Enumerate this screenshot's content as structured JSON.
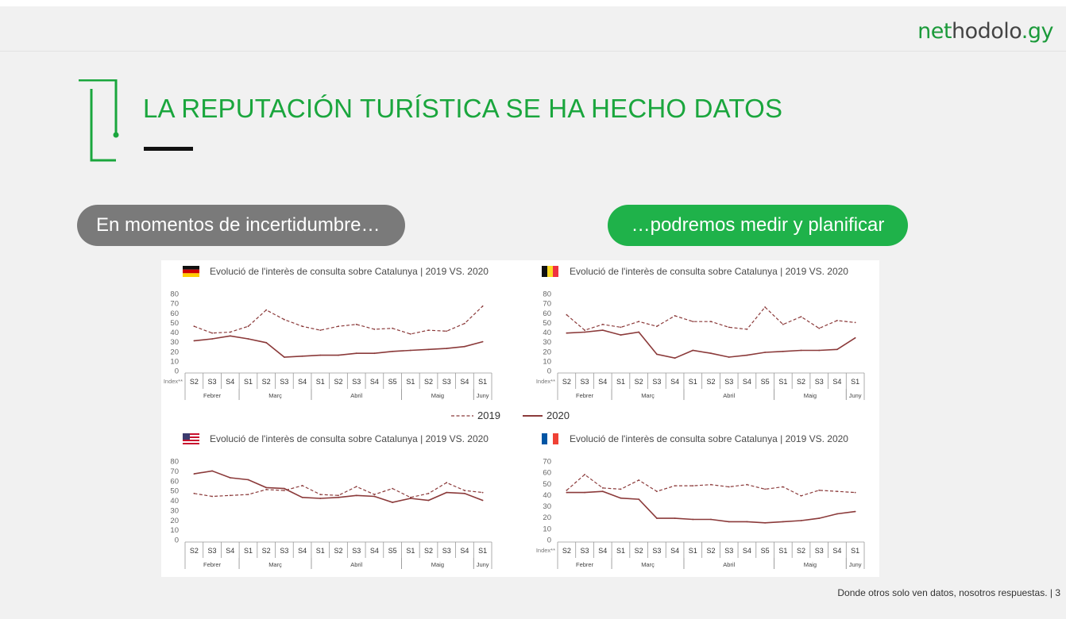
{
  "logo": {
    "part1": "net",
    "part2": "hodolo",
    "part3": ".gy"
  },
  "title": "LA REPUTACIÓN TURÍSTICA SE HA HECHO DATOS",
  "pills": {
    "left": "En momentos de incertidumbre…",
    "right": "…podremos medir y planificar"
  },
  "footer": "Donde otros solo ven datos, nosotros respuestas. | 3",
  "colors": {
    "green": "#1aa63d",
    "pill_gray": "#7a7a7a",
    "line_color": "#8b3a3a"
  },
  "legend": {
    "series_2019": "2019",
    "series_2020": "2020"
  },
  "chart_data": [
    {
      "type": "line",
      "flag": "germany-flag",
      "title": "Evolució de l'interès de consulta sobre Catalunya | 2019 VS. 2020",
      "ylabel": "Index**",
      "ylim": [
        0,
        80
      ],
      "yticks": [
        0,
        10,
        20,
        30,
        40,
        50,
        60,
        70,
        80
      ],
      "categories": [
        "S2",
        "S3",
        "S4",
        "S1",
        "S2",
        "S3",
        "S4",
        "S1",
        "S2",
        "S3",
        "S4",
        "S5",
        "S1",
        "S2",
        "S3",
        "S4",
        "S1"
      ],
      "months": [
        {
          "name": "Febrer",
          "span": [
            0,
            2
          ]
        },
        {
          "name": "Març",
          "span": [
            3,
            6
          ]
        },
        {
          "name": "Abril",
          "span": [
            7,
            11
          ]
        },
        {
          "name": "Maig",
          "span": [
            12,
            15
          ]
        },
        {
          "name": "Juny",
          "span": [
            16,
            16
          ]
        }
      ],
      "series": [
        {
          "name": "2019",
          "values": [
            46,
            39,
            40,
            46,
            63,
            53,
            46,
            42,
            46,
            48,
            43,
            44,
            38,
            42,
            41,
            49,
            67
          ]
        },
        {
          "name": "2020",
          "values": [
            31,
            33,
            36,
            33,
            29,
            14,
            15,
            16,
            16,
            18,
            18,
            20,
            21,
            22,
            23,
            25,
            30
          ]
        }
      ]
    },
    {
      "type": "line",
      "flag": "belgium-flag",
      "title": "Evolució de l'interès de consulta sobre Catalunya | 2019 VS. 2020",
      "ylabel": "Index**",
      "ylim": [
        0,
        80
      ],
      "yticks": [
        0,
        10,
        20,
        30,
        40,
        50,
        60,
        70,
        80
      ],
      "categories": [
        "S2",
        "S3",
        "S4",
        "S1",
        "S2",
        "S3",
        "S4",
        "S1",
        "S2",
        "S3",
        "S4",
        "S5",
        "S1",
        "S2",
        "S3",
        "S4",
        "S1"
      ],
      "months": [
        {
          "name": "Febrer",
          "span": [
            0,
            2
          ]
        },
        {
          "name": "Març",
          "span": [
            3,
            6
          ]
        },
        {
          "name": "Abril",
          "span": [
            7,
            11
          ]
        },
        {
          "name": "Maig",
          "span": [
            12,
            15
          ]
        },
        {
          "name": "Juny",
          "span": [
            16,
            16
          ]
        }
      ],
      "series": [
        {
          "name": "2019",
          "values": [
            58,
            42,
            48,
            45,
            51,
            46,
            57,
            51,
            51,
            45,
            43,
            66,
            48,
            56,
            44,
            52,
            50
          ]
        },
        {
          "name": "2020",
          "values": [
            39,
            40,
            42,
            37,
            40,
            17,
            13,
            21,
            18,
            14,
            16,
            19,
            20,
            21,
            21,
            22,
            34
          ]
        }
      ]
    },
    {
      "type": "line",
      "flag": "usa-flag",
      "title": "Evolució de l'interès de consulta sobre Catalunya | 2019 VS. 2020",
      "ylabel": "",
      "ylim": [
        0,
        80
      ],
      "yticks": [
        0,
        10,
        20,
        30,
        40,
        50,
        60,
        70,
        80
      ],
      "categories": [
        "S2",
        "S3",
        "S4",
        "S1",
        "S2",
        "S3",
        "S4",
        "S1",
        "S2",
        "S3",
        "S4",
        "S5",
        "S1",
        "S2",
        "S3",
        "S4",
        "S1"
      ],
      "months": [
        {
          "name": "Febrer",
          "span": [
            0,
            2
          ]
        },
        {
          "name": "Març",
          "span": [
            3,
            6
          ]
        },
        {
          "name": "Abril",
          "span": [
            7,
            11
          ]
        },
        {
          "name": "Maig",
          "span": [
            12,
            15
          ]
        },
        {
          "name": "Juny",
          "span": [
            16,
            16
          ]
        }
      ],
      "series": [
        {
          "name": "2019",
          "values": [
            47,
            44,
            45,
            46,
            51,
            50,
            55,
            46,
            45,
            54,
            46,
            52,
            43,
            47,
            58,
            50,
            48
          ]
        },
        {
          "name": "2020",
          "values": [
            67,
            70,
            63,
            61,
            53,
            52,
            43,
            42,
            43,
            45,
            44,
            38,
            42,
            40,
            48,
            47,
            40
          ]
        }
      ]
    },
    {
      "type": "line",
      "flag": "france-flag",
      "title": "Evolució de l'interès de consulta sobre Catalunya | 2019 VS. 2020",
      "ylabel": "Index**",
      "ylim": [
        0,
        70
      ],
      "yticks": [
        0,
        10,
        20,
        30,
        40,
        50,
        60,
        70
      ],
      "categories": [
        "S2",
        "S3",
        "S4",
        "S1",
        "S2",
        "S3",
        "S4",
        "S1",
        "S2",
        "S3",
        "S4",
        "S5",
        "S1",
        "S2",
        "S3",
        "S4",
        "S1"
      ],
      "months": [
        {
          "name": "Febrer",
          "span": [
            0,
            2
          ]
        },
        {
          "name": "Març",
          "span": [
            3,
            6
          ]
        },
        {
          "name": "Abril",
          "span": [
            7,
            11
          ]
        },
        {
          "name": "Maig",
          "span": [
            12,
            15
          ]
        },
        {
          "name": "Juny",
          "span": [
            16,
            16
          ]
        }
      ],
      "series": [
        {
          "name": "2019",
          "values": [
            44,
            58,
            46,
            45,
            53,
            43,
            48,
            48,
            49,
            47,
            49,
            45,
            47,
            39,
            44,
            43,
            42
          ]
        },
        {
          "name": "2020",
          "values": [
            42,
            42,
            43,
            37,
            36,
            19,
            19,
            18,
            18,
            16,
            16,
            15,
            16,
            17,
            19,
            23,
            25
          ]
        }
      ]
    }
  ]
}
